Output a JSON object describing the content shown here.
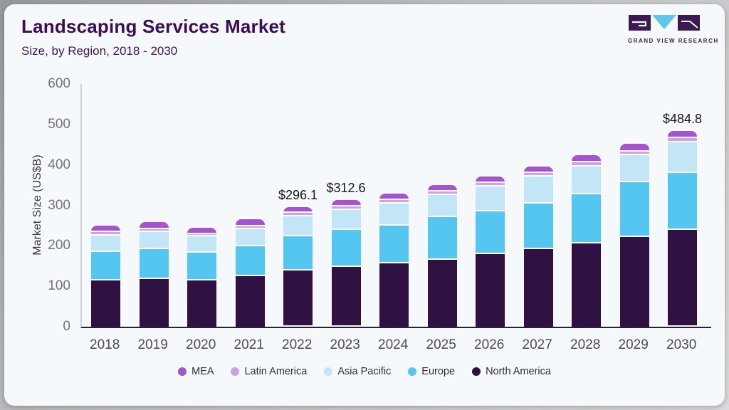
{
  "header": {
    "title": "Landscaping Services Market",
    "subtitle": "Size, by Region, 2018 - 2030"
  },
  "logo": {
    "text": "GRAND VIEW RESEARCH"
  },
  "chart_data": {
    "type": "bar",
    "stacked": true,
    "title": "Landscaping Services Market",
    "subtitle": "Size, by Region, 2018 - 2030",
    "xlabel": "",
    "ylabel": "Market Size (US$B)",
    "ylim": [
      0,
      600
    ],
    "yticks": [
      0,
      100,
      200,
      300,
      400,
      500,
      600
    ],
    "grid": false,
    "legend_position": "bottom",
    "categories": [
      "2018",
      "2019",
      "2020",
      "2021",
      "2022",
      "2023",
      "2024",
      "2025",
      "2026",
      "2027",
      "2028",
      "2029",
      "2030"
    ],
    "series": [
      {
        "name": "North America",
        "color": "#2F1243",
        "values": [
          114.4,
          118.0,
          113.7,
          125.0,
          139.0,
          147.7,
          156.7,
          166.0,
          178.9,
          191.2,
          205.3,
          221.0,
          239.4
        ]
      },
      {
        "name": "Europe",
        "color": "#54C6F0",
        "values": [
          70.4,
          73.2,
          69.9,
          74.5,
          84.5,
          91.5,
          93.3,
          104.4,
          106.3,
          113.9,
          122.7,
          136.0,
          140.1
        ]
      },
      {
        "name": "Asia Pacific",
        "color": "#C2E6F6",
        "values": [
          41.0,
          42.3,
          39.3,
          42.3,
          49.3,
          49.3,
          54.6,
          55.3,
          61.6,
          66.4,
          68.5,
          66.5,
          75.7
        ]
      },
      {
        "name": "Latin America",
        "color": "#CFA0E4",
        "values": [
          7.6,
          8.3,
          6.5,
          7.0,
          8.1,
          8.3,
          8.8,
          8.8,
          8.8,
          8.1,
          10.0,
          8.8,
          10.6
        ]
      },
      {
        "name": "MEA",
        "color": "#A553CE",
        "values": [
          15.8,
          17.1,
          15.8,
          17.1,
          15.2,
          15.8,
          15.8,
          15.8,
          16.4,
          17.1,
          18.1,
          20.0,
          19.0
        ]
      }
    ],
    "totals": [
      249.2,
      258.9,
      245.2,
      265.9,
      296.1,
      312.6,
      329.2,
      350.3,
      372.0,
      396.7,
      424.6,
      452.3,
      484.8
    ],
    "annotations": [
      {
        "category": "2022",
        "label": "$296.1"
      },
      {
        "category": "2023",
        "label": "$312.6"
      },
      {
        "category": "2030",
        "label": "$484.8"
      }
    ],
    "legend": [
      "MEA",
      "Latin America",
      "Asia Pacific",
      "Europe",
      "North America"
    ]
  }
}
